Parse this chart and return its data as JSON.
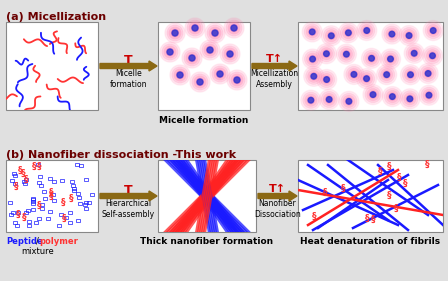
{
  "bg_color": "#e0e0e0",
  "title_a": "(a) Micellization",
  "title_b": "(b) Nanofiber dissociation -This work",
  "arrow_color": "#8B6914",
  "peptide_color": "#1a1aff",
  "polymer_color": "#ff3333",
  "pink_color": "#ff80b0",
  "blue_color": "#1a1aff",
  "red_color": "#ff2222",
  "T_color": "#cc0000",
  "caption_a": "Micelle formation",
  "caption_b2": "Thick nanofiber formation",
  "caption_b3": "Heat denaturation of fibrils"
}
